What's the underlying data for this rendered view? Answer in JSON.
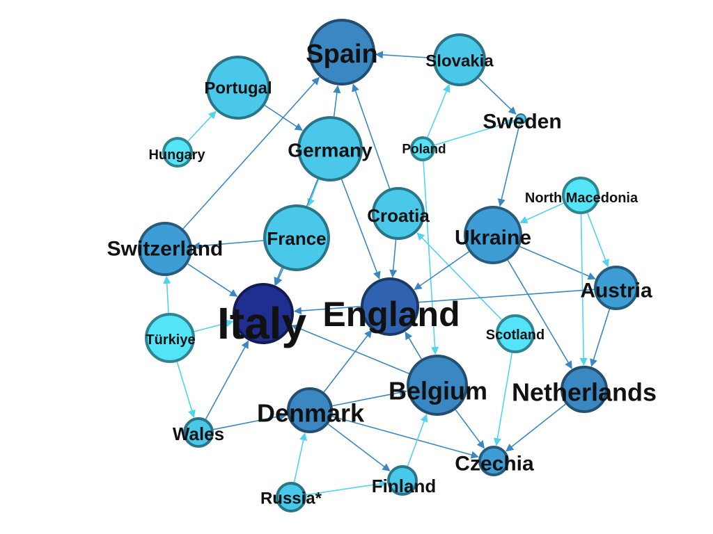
{
  "colors": {
    "background": "#ffffff",
    "edge_light": "#4fd3ef",
    "edge_dark": "#3a87c2",
    "label": "#111111"
  },
  "network": {
    "nodes": [
      {
        "id": "spain",
        "label": "Spain",
        "fill": "#3a87c2"
      },
      {
        "id": "slovakia",
        "label": "Slovakia",
        "fill": "#49c8ea"
      },
      {
        "id": "portugal",
        "label": "Portugal",
        "fill": "#49c8ea"
      },
      {
        "id": "sweden",
        "label": "Sweden",
        "fill": "#49c8ea"
      },
      {
        "id": "hungary",
        "label": "Hungary",
        "fill": "#53e4f8"
      },
      {
        "id": "germany",
        "label": "Germany",
        "fill": "#49c8ea"
      },
      {
        "id": "poland",
        "label": "Poland",
        "fill": "#53e4f8"
      },
      {
        "id": "north-macedonia",
        "label": "North Macedonia",
        "fill": "#53e4f8"
      },
      {
        "id": "croatia",
        "label": "Croatia",
        "fill": "#49c8ea"
      },
      {
        "id": "ukraine",
        "label": "Ukraine",
        "fill": "#3f9dd6"
      },
      {
        "id": "switzerland",
        "label": "Switzerland",
        "fill": "#3f9dd6"
      },
      {
        "id": "france",
        "label": "France",
        "fill": "#49c8ea"
      },
      {
        "id": "austria",
        "label": "Austria",
        "fill": "#3f9dd6"
      },
      {
        "id": "italy",
        "label": "Italy",
        "fill": "#1f2f8f"
      },
      {
        "id": "england",
        "label": "England",
        "fill": "#2f63b0"
      },
      {
        "id": "scotland",
        "label": "Scotland",
        "fill": "#53e4f8"
      },
      {
        "id": "turkiye",
        "label": "Türkiye",
        "fill": "#53e4f8"
      },
      {
        "id": "belgium",
        "label": "Belgium",
        "fill": "#3a87c2"
      },
      {
        "id": "netherlands",
        "label": "Netherlands",
        "fill": "#3a87c2"
      },
      {
        "id": "denmark",
        "label": "Denmark",
        "fill": "#3a87c2"
      },
      {
        "id": "wales",
        "label": "Wales",
        "fill": "#49c8ea"
      },
      {
        "id": "czechia",
        "label": "Czechia",
        "fill": "#3f9dd6"
      },
      {
        "id": "finland",
        "label": "Finland",
        "fill": "#49c8ea"
      },
      {
        "id": "russia",
        "label": "Russia*",
        "fill": "#49c8ea"
      }
    ],
    "edges": [
      {
        "from": "slovakia",
        "to": "spain",
        "shade": "dark"
      },
      {
        "from": "slovakia",
        "to": "sweden",
        "shade": "dark"
      },
      {
        "from": "poland",
        "to": "slovakia",
        "shade": "light"
      },
      {
        "from": "poland",
        "to": "sweden",
        "shade": "light"
      },
      {
        "from": "poland",
        "to": "belgium",
        "shade": "light"
      },
      {
        "from": "sweden",
        "to": "ukraine",
        "shade": "dark"
      },
      {
        "from": "hungary",
        "to": "portugal",
        "shade": "light"
      },
      {
        "from": "portugal",
        "to": "germany",
        "shade": "dark"
      },
      {
        "from": "germany",
        "to": "spain",
        "shade": "dark"
      },
      {
        "from": "germany",
        "to": "france",
        "shade": "light"
      },
      {
        "from": "germany",
        "to": "england",
        "shade": "dark"
      },
      {
        "from": "germany",
        "to": "italy",
        "shade": "dark"
      },
      {
        "from": "croatia",
        "to": "spain",
        "shade": "dark"
      },
      {
        "from": "croatia",
        "to": "england",
        "shade": "dark"
      },
      {
        "from": "scotland",
        "to": "croatia",
        "shade": "light"
      },
      {
        "from": "scotland",
        "to": "czechia",
        "shade": "light"
      },
      {
        "from": "switzerland",
        "to": "spain",
        "shade": "dark"
      },
      {
        "from": "switzerland",
        "to": "italy",
        "shade": "dark"
      },
      {
        "from": "france",
        "to": "switzerland",
        "shade": "dark"
      },
      {
        "from": "france",
        "to": "italy",
        "shade": "dark"
      },
      {
        "from": "turkiye",
        "to": "switzerland",
        "shade": "light"
      },
      {
        "from": "turkiye",
        "to": "italy",
        "shade": "light"
      },
      {
        "from": "turkiye",
        "to": "wales",
        "shade": "light"
      },
      {
        "from": "wales",
        "to": "italy",
        "shade": "dark"
      },
      {
        "from": "wales",
        "to": "denmark",
        "shade": "dark"
      },
      {
        "from": "ukraine",
        "to": "england",
        "shade": "dark"
      },
      {
        "from": "ukraine",
        "to": "austria",
        "shade": "dark"
      },
      {
        "from": "ukraine",
        "to": "netherlands",
        "shade": "dark"
      },
      {
        "from": "north-macedonia",
        "to": "ukraine",
        "shade": "light"
      },
      {
        "from": "north-macedonia",
        "to": "austria",
        "shade": "light"
      },
      {
        "from": "north-macedonia",
        "to": "netherlands",
        "shade": "light"
      },
      {
        "from": "austria",
        "to": "italy",
        "shade": "dark"
      },
      {
        "from": "austria",
        "to": "netherlands",
        "shade": "dark"
      },
      {
        "from": "belgium",
        "to": "italy",
        "shade": "dark"
      },
      {
        "from": "belgium",
        "to": "england",
        "shade": "dark"
      },
      {
        "from": "belgium",
        "to": "czechia",
        "shade": "dark"
      },
      {
        "from": "netherlands",
        "to": "czechia",
        "shade": "dark"
      },
      {
        "from": "denmark",
        "to": "england",
        "shade": "dark"
      },
      {
        "from": "denmark",
        "to": "belgium",
        "shade": "dark"
      },
      {
        "from": "denmark",
        "to": "czechia",
        "shade": "dark"
      },
      {
        "from": "denmark",
        "to": "finland",
        "shade": "dark"
      },
      {
        "from": "russia",
        "to": "denmark",
        "shade": "light"
      },
      {
        "from": "russia",
        "to": "finland",
        "shade": "light"
      },
      {
        "from": "finland",
        "to": "belgium",
        "shade": "light"
      }
    ]
  }
}
